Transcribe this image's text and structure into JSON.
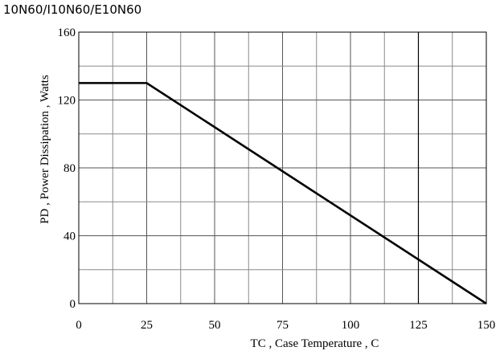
{
  "chart_data": {
    "type": "line",
    "title": "10N60/I10N60/E10N60",
    "xlabel": "TC , Case Temperature , C",
    "ylabel": "PD , Power Dissipation ,  Watts",
    "xlim": [
      0,
      150
    ],
    "ylim": [
      0,
      160
    ],
    "x_ticks": [
      0,
      25,
      50,
      75,
      100,
      125,
      150
    ],
    "y_ticks": [
      0,
      40,
      80,
      120,
      160
    ],
    "x_tick_labels": [
      "0",
      "25",
      "50",
      "75",
      "100",
      "125",
      "150"
    ],
    "y_tick_labels": [
      "0",
      "40",
      "80",
      "120",
      "160"
    ],
    "x_minor_step": 12.5,
    "y_minor_step": 20,
    "grid": true,
    "series": [
      {
        "x": [
          0,
          25,
          150
        ],
        "y": [
          130,
          130,
          0
        ],
        "color": "#000000"
      }
    ]
  }
}
